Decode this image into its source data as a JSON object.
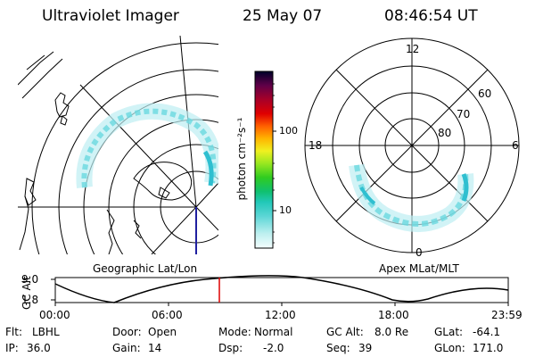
{
  "header": {
    "instrument": "Ultraviolet Imager",
    "date": "25 May 07",
    "time": "08:46:54 UT"
  },
  "colorbar": {
    "unit_label": "photon cm⁻²s⁻¹",
    "ticks": [
      "100",
      "10"
    ],
    "scale": "log",
    "colors": [
      "#e8fbfb",
      "#a6ecec",
      "#33cccc",
      "#10c07a",
      "#20c820",
      "#60dd20",
      "#c8f020",
      "#ffff00",
      "#ffa500",
      "#ff5000",
      "#dd0000",
      "#aa0020",
      "#700040",
      "#300040",
      "#000033"
    ]
  },
  "geo_panel": {
    "label": "Geographic Lat/Lon"
  },
  "apex_panel": {
    "label": "Apex MLat/MLT",
    "mlt_labels": [
      "12",
      "18",
      "6",
      "0"
    ],
    "mlat_labels": [
      "60",
      "70",
      "80"
    ]
  },
  "altitude_plot": {
    "ylabel": "GC Alt",
    "yticks": [
      "9.0",
      "1.8"
    ],
    "xticks": [
      "00:00",
      "06:00",
      "12:00",
      "18:00",
      "23:59"
    ],
    "current_time_marker": "08:46:54"
  },
  "status": {
    "flt_label": "Flt:",
    "flt_value": "LBHL",
    "ip_label": "IP:",
    "ip_value": "36.0",
    "door_label": "Door:",
    "door_value": "Open",
    "gain_label": "Gain:",
    "gain_value": "14",
    "mode_label": "Mode:",
    "mode_value": "Normal",
    "dsp_label": "Dsp:",
    "dsp_value": "-2.0",
    "gcalt_label": "GC Alt:",
    "gcalt_value": "8.0 Re",
    "seq_label": "Seq:",
    "seq_value": "39",
    "glat_label": "GLat:",
    "glat_value": "-64.1",
    "glon_label": "GLon:",
    "glon_value": "171.0"
  },
  "colors": {
    "aurora": "#6ad8e0",
    "aurora_core": "#2fbfd0",
    "marker": "#dd0000",
    "trace": "#2020a0"
  }
}
